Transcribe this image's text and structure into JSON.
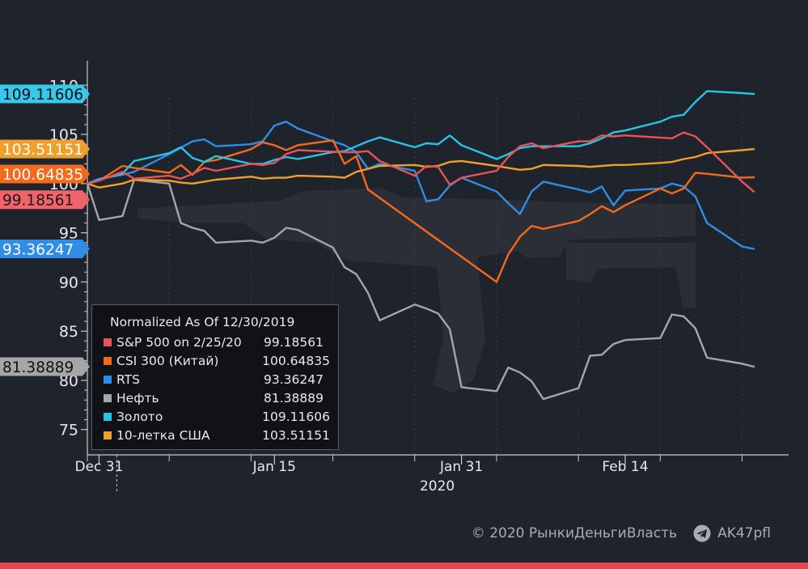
{
  "chart_data": {
    "type": "line",
    "y_ticks": [
      75,
      80,
      85,
      90,
      95,
      100,
      105,
      110
    ],
    "ylim": [
      73,
      112
    ],
    "x_major_ticks": [
      {
        "label": "Dec 31",
        "x": "2019-12-31"
      },
      {
        "label": "Jan 15",
        "x": "2020-01-15"
      },
      {
        "label": "Jan 31",
        "x": "2020-01-31"
      },
      {
        "label": "Feb 14",
        "x": "2020-02-14"
      }
    ],
    "year_label": "2020",
    "xlim": [
      "2019-12-30",
      "2020-02-25"
    ],
    "legend_title": "Normalized As Of 12/30/2019",
    "legend_position": "bottom-left",
    "series": [
      {
        "name": "S&P 500 on 2/25/20",
        "color": "#e8525a",
        "last_value": "99.18561",
        "last_label_color": "#f0636b",
        "x": [
          "2019-12-30",
          "2019-12-31",
          "2020-01-02",
          "2020-01-03",
          "2020-01-06",
          "2020-01-07",
          "2020-01-08",
          "2020-01-09",
          "2020-01-10",
          "2020-01-13",
          "2020-01-14",
          "2020-01-15",
          "2020-01-16",
          "2020-01-17",
          "2020-01-21",
          "2020-01-22",
          "2020-01-23",
          "2020-01-24",
          "2020-01-27",
          "2020-01-28",
          "2020-01-29",
          "2020-01-30",
          "2020-01-31",
          "2020-02-03",
          "2020-02-04",
          "2020-02-05",
          "2020-02-06",
          "2020-02-07",
          "2020-02-10",
          "2020-02-11",
          "2020-02-12",
          "2020-02-13",
          "2020-02-14",
          "2020-02-18",
          "2020-02-19",
          "2020-02-20",
          "2020-02-21",
          "2020-02-24",
          "2020-02-25"
        ],
        "y": [
          100,
          100.3,
          101.2,
          100.5,
          100.8,
          100.5,
          101.0,
          101.6,
          101.3,
          102.0,
          101.9,
          102.1,
          103.0,
          103.4,
          103.2,
          103.2,
          103.3,
          102.3,
          100.8,
          101.8,
          101.7,
          99.9,
          100.6,
          101.3,
          102.7,
          103.8,
          104.1,
          103.6,
          104.3,
          104.3,
          104.9,
          104.8,
          104.9,
          104.6,
          105.2,
          104.8,
          103.7,
          100.2,
          99.18561
        ]
      },
      {
        "name": "CSI 300 (Китай)",
        "color": "#f26a1b",
        "last_value": "100.64835",
        "last_label_color": "#f26a1b",
        "x": [
          "2019-12-30",
          "2019-12-31",
          "2020-01-02",
          "2020-01-03",
          "2020-01-06",
          "2020-01-07",
          "2020-01-08",
          "2020-01-09",
          "2020-01-10",
          "2020-01-13",
          "2020-01-14",
          "2020-01-15",
          "2020-01-16",
          "2020-01-17",
          "2020-01-20",
          "2020-01-21",
          "2020-01-22",
          "2020-01-23",
          "2020-02-03",
          "2020-02-04",
          "2020-02-05",
          "2020-02-06",
          "2020-02-07",
          "2020-02-10",
          "2020-02-11",
          "2020-02-12",
          "2020-02-13",
          "2020-02-14",
          "2020-02-17",
          "2020-02-18",
          "2020-02-19",
          "2020-02-20",
          "2020-02-21",
          "2020-02-24",
          "2020-02-25"
        ],
        "y": [
          100,
          100.3,
          101.8,
          101.6,
          101.1,
          101.9,
          100.9,
          102.2,
          102.4,
          103.5,
          104.2,
          103.9,
          103.4,
          103.9,
          104.4,
          102.0,
          102.8,
          99.4,
          90.0,
          92.8,
          94.6,
          95.7,
          95.4,
          96.2,
          96.9,
          97.7,
          97.1,
          97.8,
          99.5,
          99.0,
          99.5,
          101.1,
          101.0,
          100.6,
          100.64835
        ]
      },
      {
        "name": "RTS",
        "color": "#2f8de4",
        "last_value": "93.36247",
        "last_label_color": "#2f8de4",
        "x": [
          "2019-12-30",
          "2019-12-31",
          "2020-01-02",
          "2020-01-03",
          "2020-01-06",
          "2020-01-08",
          "2020-01-09",
          "2020-01-10",
          "2020-01-13",
          "2020-01-14",
          "2020-01-15",
          "2020-01-16",
          "2020-01-17",
          "2020-01-20",
          "2020-01-21",
          "2020-01-22",
          "2020-01-23",
          "2020-01-24",
          "2020-01-27",
          "2020-01-28",
          "2020-01-29",
          "2020-01-30",
          "2020-01-31",
          "2020-02-03",
          "2020-02-04",
          "2020-02-05",
          "2020-02-06",
          "2020-02-07",
          "2020-02-10",
          "2020-02-11",
          "2020-02-12",
          "2020-02-13",
          "2020-02-14",
          "2020-02-17",
          "2020-02-18",
          "2020-02-19",
          "2020-02-20",
          "2020-02-21",
          "2020-02-24",
          "2020-02-25"
        ],
        "y": [
          100,
          100.5,
          100.9,
          101.2,
          103.0,
          104.3,
          104.5,
          103.8,
          104.0,
          104.3,
          105.9,
          106.3,
          105.6,
          104.3,
          103.9,
          103.2,
          101.5,
          102.0,
          101.3,
          98.2,
          98.4,
          99.8,
          100.6,
          99.2,
          98.0,
          96.9,
          99.2,
          100.2,
          99.4,
          99.1,
          99.7,
          97.8,
          99.3,
          99.5,
          100.0,
          99.7,
          98.7,
          96.0,
          93.6,
          93.36247
        ]
      },
      {
        "name": "Нефть",
        "color": "#a6a6a6",
        "last_value": "81.38889",
        "last_label_color": "#a6a6a6",
        "x": [
          "2019-12-30",
          "2019-12-31",
          "2020-01-02",
          "2020-01-03",
          "2020-01-06",
          "2020-01-07",
          "2020-01-08",
          "2020-01-09",
          "2020-01-10",
          "2020-01-13",
          "2020-01-14",
          "2020-01-15",
          "2020-01-16",
          "2020-01-17",
          "2020-01-20",
          "2020-01-21",
          "2020-01-22",
          "2020-01-23",
          "2020-01-24",
          "2020-01-27",
          "2020-01-28",
          "2020-01-29",
          "2020-01-30",
          "2020-01-31",
          "2020-02-03",
          "2020-02-04",
          "2020-02-05",
          "2020-02-06",
          "2020-02-07",
          "2020-02-10",
          "2020-02-11",
          "2020-02-12",
          "2020-02-13",
          "2020-02-14",
          "2020-02-17",
          "2020-02-18",
          "2020-02-19",
          "2020-02-20",
          "2020-02-21",
          "2020-02-24",
          "2020-02-25"
        ],
        "y": [
          100,
          96.3,
          96.7,
          100.4,
          100.0,
          96.0,
          95.5,
          95.2,
          94.0,
          94.2,
          94.0,
          94.5,
          95.5,
          95.3,
          93.5,
          91.5,
          90.8,
          88.9,
          86.1,
          87.7,
          87.3,
          86.8,
          85.2,
          79.3,
          78.9,
          81.3,
          80.8,
          79.9,
          78.1,
          79.2,
          82.5,
          82.6,
          83.7,
          84.1,
          84.3,
          86.7,
          86.5,
          85.3,
          82.3,
          81.7,
          81.38889
        ]
      },
      {
        "name": "Золото",
        "color": "#29c3e8",
        "last_value": "109.11606",
        "last_label_color": "#37c8ec",
        "x": [
          "2019-12-30",
          "2019-12-31",
          "2020-01-02",
          "2020-01-03",
          "2020-01-06",
          "2020-01-07",
          "2020-01-08",
          "2020-01-09",
          "2020-01-10",
          "2020-01-13",
          "2020-01-14",
          "2020-01-15",
          "2020-01-16",
          "2020-01-17",
          "2020-01-20",
          "2020-01-21",
          "2020-01-22",
          "2020-01-23",
          "2020-01-24",
          "2020-01-27",
          "2020-01-28",
          "2020-01-29",
          "2020-01-30",
          "2020-01-31",
          "2020-02-03",
          "2020-02-04",
          "2020-02-05",
          "2020-02-06",
          "2020-02-07",
          "2020-02-10",
          "2020-02-11",
          "2020-02-12",
          "2020-02-13",
          "2020-02-14",
          "2020-02-17",
          "2020-02-18",
          "2020-02-19",
          "2020-02-20",
          "2020-02-21",
          "2020-02-24",
          "2020-02-25"
        ],
        "y": [
          100,
          100.4,
          101.0,
          102.3,
          103.1,
          103.7,
          102.6,
          102.2,
          102.8,
          102.0,
          102.0,
          102.4,
          102.7,
          102.5,
          103.2,
          103.3,
          103.8,
          104.3,
          104.7,
          103.7,
          104.1,
          104.0,
          104.9,
          103.9,
          102.5,
          103.0,
          103.6,
          103.8,
          103.8,
          103.8,
          104.1,
          104.6,
          105.2,
          105.4,
          106.3,
          106.8,
          107.0,
          108.3,
          109.4,
          109.2,
          109.11606
        ]
      },
      {
        "name": "10-летка США",
        "color": "#f0a02a",
        "last_value": "103.51151",
        "last_label_color": "#f0a02a",
        "x": [
          "2019-12-30",
          "2019-12-31",
          "2020-01-02",
          "2020-01-03",
          "2020-01-06",
          "2020-01-07",
          "2020-01-08",
          "2020-01-09",
          "2020-01-10",
          "2020-01-13",
          "2020-01-14",
          "2020-01-15",
          "2020-01-16",
          "2020-01-17",
          "2020-01-20",
          "2020-01-21",
          "2020-01-22",
          "2020-01-23",
          "2020-01-24",
          "2020-01-27",
          "2020-01-28",
          "2020-01-29",
          "2020-01-30",
          "2020-01-31",
          "2020-02-03",
          "2020-02-04",
          "2020-02-05",
          "2020-02-06",
          "2020-02-07",
          "2020-02-10",
          "2020-02-11",
          "2020-02-12",
          "2020-02-13",
          "2020-02-14",
          "2020-02-17",
          "2020-02-18",
          "2020-02-19",
          "2020-02-20",
          "2020-02-21",
          "2020-02-24",
          "2020-02-25"
        ],
        "y": [
          100,
          99.6,
          100.0,
          100.4,
          100.3,
          100.1,
          100.0,
          100.2,
          100.4,
          100.7,
          100.5,
          100.6,
          100.6,
          100.8,
          100.7,
          100.6,
          101.2,
          101.5,
          101.8,
          101.9,
          101.7,
          101.8,
          102.2,
          102.3,
          101.8,
          101.6,
          101.4,
          101.5,
          101.9,
          101.8,
          101.7,
          101.8,
          101.9,
          101.9,
          102.1,
          102.2,
          102.5,
          102.7,
          103.1,
          103.4,
          103.51151
        ]
      }
    ]
  },
  "credits": {
    "copyright": "© 2020  РынкиДеньгиВласть",
    "telegram_handle": "AK47pfl",
    "telegram_icon": "telegram-icon"
  },
  "colors": {
    "background": "#1f232b",
    "axis": "#c8c8c8",
    "grid": "#3b3f47",
    "legend_bg": "#111215",
    "bottom_bar": "#e0474f"
  }
}
